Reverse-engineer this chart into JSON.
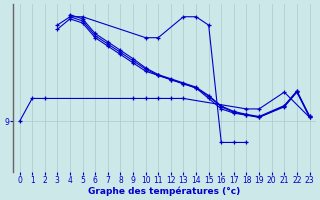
{
  "xlabel": "Graphe des températures (°c)",
  "background_color": "#cce8e8",
  "line_color": "#0000cc",
  "grid_color": "#aacccc",
  "xlim": [
    -0.5,
    23.5
  ],
  "ylim": [
    7.8,
    11.8
  ],
  "yticks": [
    9
  ],
  "xticks": [
    0,
    1,
    2,
    3,
    4,
    5,
    6,
    7,
    8,
    9,
    10,
    11,
    12,
    13,
    14,
    15,
    16,
    17,
    18,
    19,
    20,
    21,
    22,
    23
  ],
  "lines": [
    {
      "x": [
        0,
        1,
        2,
        9,
        10,
        11,
        12,
        13,
        18,
        19,
        21,
        23
      ],
      "y": [
        9.0,
        9.55,
        9.55,
        9.55,
        9.55,
        9.55,
        9.55,
        9.55,
        9.3,
        9.3,
        9.7,
        9.1
      ]
    },
    {
      "x": [
        3,
        4,
        5,
        10,
        11,
        13,
        14,
        15,
        16,
        17,
        18
      ],
      "y": [
        11.3,
        11.5,
        11.5,
        11.0,
        11.0,
        11.5,
        11.5,
        11.3,
        8.5,
        8.5,
        8.5
      ]
    },
    {
      "x": [
        3,
        4,
        5,
        6,
        7,
        8,
        9,
        10,
        11,
        12,
        13,
        14,
        15,
        16,
        17,
        18,
        19,
        21,
        22,
        23
      ],
      "y": [
        11.2,
        11.45,
        11.35,
        11.0,
        10.8,
        10.6,
        10.4,
        10.2,
        10.1,
        10.0,
        9.9,
        9.8,
        9.55,
        9.3,
        9.2,
        9.15,
        9.1,
        9.35,
        9.7,
        9.1
      ]
    },
    {
      "x": [
        4,
        5,
        6,
        7,
        8,
        9,
        10,
        11,
        12,
        13,
        14,
        15,
        16,
        17,
        18,
        19,
        21,
        22,
        23
      ],
      "y": [
        11.5,
        11.4,
        11.05,
        10.85,
        10.65,
        10.45,
        10.25,
        10.1,
        10.0,
        9.9,
        9.8,
        9.6,
        9.35,
        9.22,
        9.16,
        9.1,
        9.37,
        9.72,
        9.12
      ]
    },
    {
      "x": [
        4,
        5,
        6,
        7,
        8,
        9,
        10,
        11,
        12,
        13,
        14,
        15,
        16,
        17,
        18,
        19,
        21,
        22,
        23
      ],
      "y": [
        11.55,
        11.45,
        11.1,
        10.9,
        10.7,
        10.5,
        10.28,
        10.12,
        10.02,
        9.92,
        9.82,
        9.62,
        9.37,
        9.24,
        9.17,
        9.12,
        9.38,
        9.73,
        9.13
      ]
    }
  ]
}
